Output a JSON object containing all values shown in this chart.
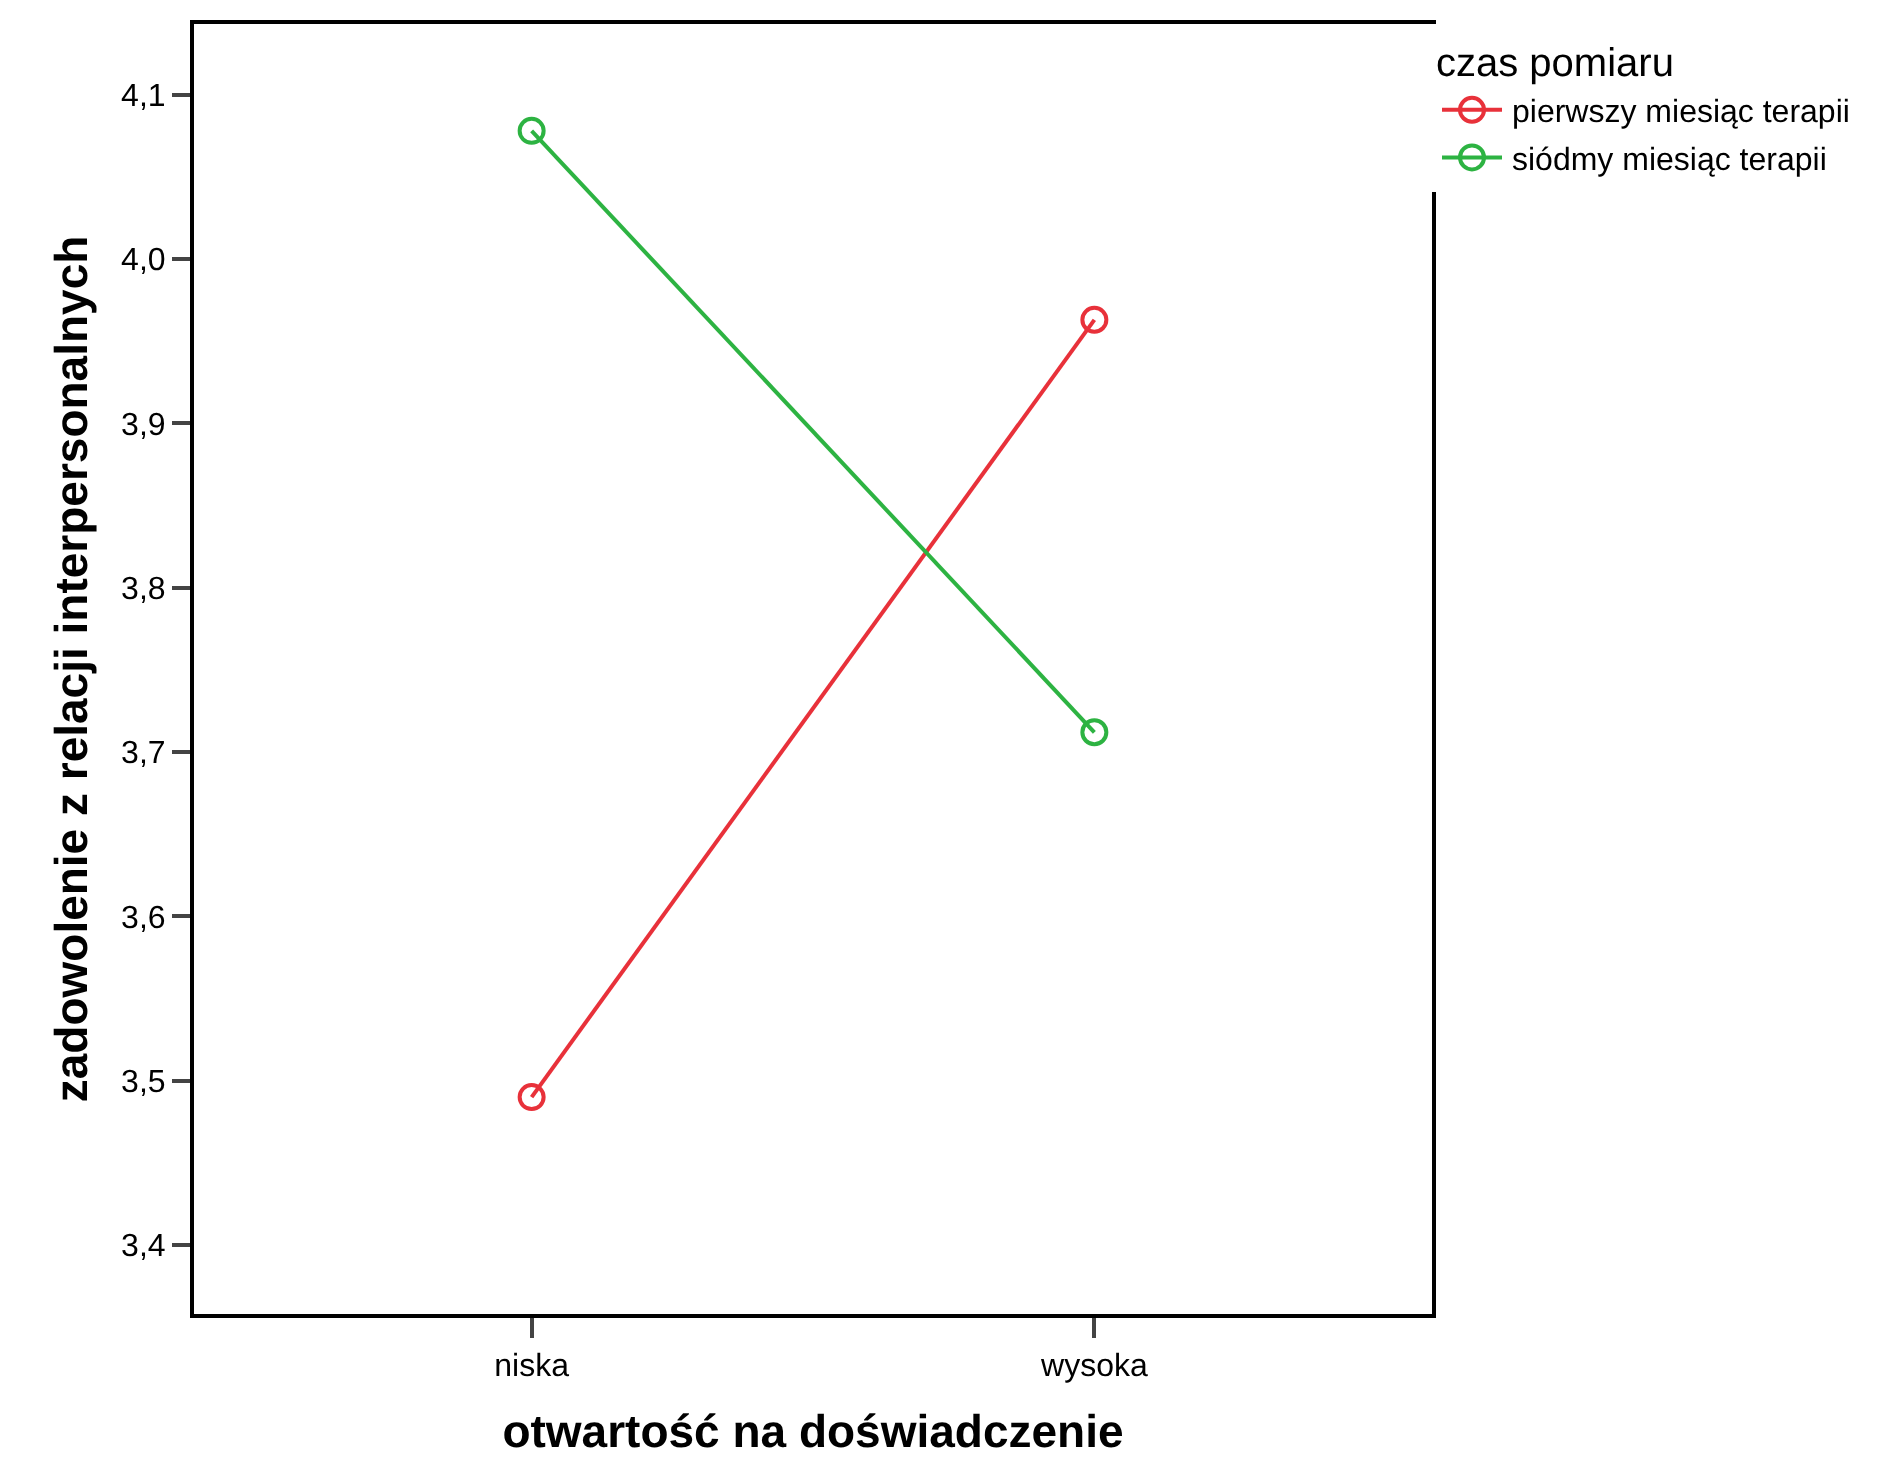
{
  "chart_data": {
    "type": "line",
    "xlabel": "otwartość na doświadczenie",
    "ylabel": "zadowolenie z relacji interpersonalnych",
    "legend_title": "czas pomiaru",
    "categories": [
      "niska",
      "wysoka"
    ],
    "series": [
      {
        "name": "pierwszy miesiąc terapii",
        "color": "#e8313a",
        "values": [
          3.49,
          3.963
        ]
      },
      {
        "name": "siódmy miesiąc terapii",
        "color": "#2db342",
        "values": [
          4.078,
          3.712
        ]
      }
    ],
    "ylim": [
      3.358,
      4.143
    ],
    "yticks": [
      {
        "value": 3.4,
        "label": "3,4"
      },
      {
        "value": 3.5,
        "label": "3,5"
      },
      {
        "value": 3.6,
        "label": "3,6"
      },
      {
        "value": 3.7,
        "label": "3,7"
      },
      {
        "value": 3.8,
        "label": "3,8"
      },
      {
        "value": 3.9,
        "label": "3,9"
      },
      {
        "value": 4.0,
        "label": "4,0"
      },
      {
        "value": 4.1,
        "label": "4,1"
      }
    ],
    "grid": false,
    "legend": "top right",
    "marker": "circle",
    "line_style": "solid"
  }
}
